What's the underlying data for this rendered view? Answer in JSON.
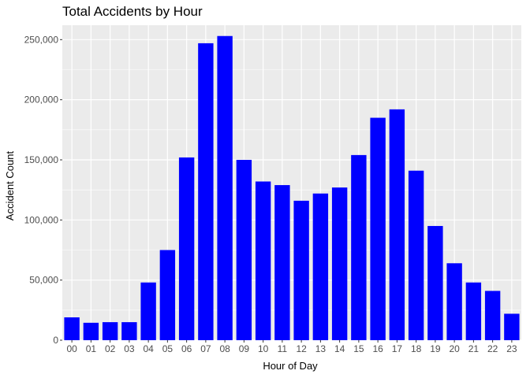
{
  "chart_data": {
    "type": "bar",
    "title": "Total Accidents by Hour",
    "xlabel": "Hour of Day",
    "ylabel": "Accident Count",
    "categories": [
      "00",
      "01",
      "02",
      "03",
      "04",
      "05",
      "06",
      "07",
      "08",
      "09",
      "10",
      "11",
      "12",
      "13",
      "14",
      "15",
      "16",
      "17",
      "18",
      "19",
      "20",
      "21",
      "22",
      "23"
    ],
    "values": [
      19000,
      14500,
      15000,
      15000,
      48000,
      75000,
      152000,
      247000,
      253000,
      150000,
      132000,
      129000,
      116000,
      122000,
      127000,
      154000,
      185000,
      192000,
      141000,
      95000,
      64000,
      48000,
      41000,
      22000
    ],
    "ylim": [
      0,
      262000
    ],
    "yticks": [
      0,
      50000,
      100000,
      150000,
      200000,
      250000
    ],
    "ytick_labels": [
      "0",
      "50,000",
      "100,000",
      "150,000",
      "200,000",
      "250,000"
    ],
    "grid": true,
    "colors": {
      "bar": "#0000ff",
      "panel": "#ebebeb",
      "grid": "#ffffff",
      "tick": "#333333"
    }
  }
}
